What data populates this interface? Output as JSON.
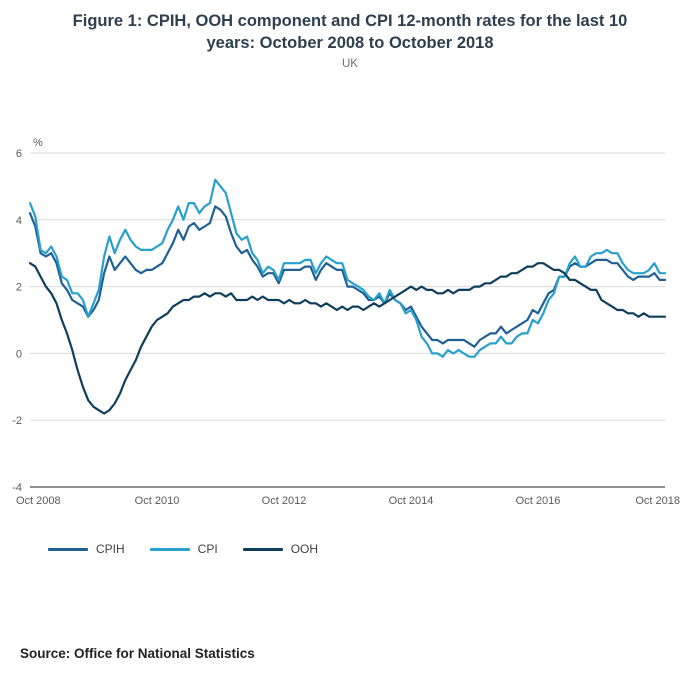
{
  "chart_data": {
    "type": "line",
    "title": "Figure 1: CPIH, OOH component and CPI 12-month rates for the last 10 years: October 2008 to October 2018",
    "subtitle": "UK",
    "unit_label": "%",
    "ylim": [
      -4,
      6
    ],
    "yticks": [
      -4,
      -2,
      0,
      2,
      4,
      6
    ],
    "grid": "horizontal",
    "legend_position": "bottom-left",
    "x_start": "Oct 2008",
    "x_end": "Oct 2018",
    "x_frequency": "monthly",
    "xticks": [
      {
        "index": 0,
        "label": "Oct 2008"
      },
      {
        "index": 24,
        "label": "Oct 2010"
      },
      {
        "index": 48,
        "label": "Oct 2012"
      },
      {
        "index": 72,
        "label": "Oct 2014"
      },
      {
        "index": 96,
        "label": "Oct 2016"
      },
      {
        "index": 120,
        "label": "Oct 2018"
      }
    ],
    "series": [
      {
        "name": "CPIH",
        "color": "#206095",
        "values": [
          4.2,
          3.8,
          3.0,
          2.9,
          3.0,
          2.7,
          2.1,
          1.9,
          1.6,
          1.5,
          1.4,
          1.1,
          1.3,
          1.6,
          2.4,
          2.9,
          2.5,
          2.7,
          2.9,
          2.7,
          2.5,
          2.4,
          2.5,
          2.5,
          2.6,
          2.7,
          3.0,
          3.3,
          3.7,
          3.4,
          3.8,
          3.9,
          3.7,
          3.8,
          3.9,
          4.4,
          4.3,
          4.1,
          3.6,
          3.2,
          3.0,
          3.1,
          2.8,
          2.6,
          2.3,
          2.4,
          2.4,
          2.1,
          2.5,
          2.5,
          2.5,
          2.5,
          2.6,
          2.6,
          2.2,
          2.5,
          2.7,
          2.6,
          2.5,
          2.5,
          2.0,
          2.0,
          1.9,
          1.8,
          1.6,
          1.6,
          1.7,
          1.5,
          1.8,
          1.6,
          1.5,
          1.3,
          1.4,
          1.1,
          0.8,
          0.6,
          0.4,
          0.4,
          0.3,
          0.4,
          0.4,
          0.4,
          0.4,
          0.3,
          0.2,
          0.4,
          0.5,
          0.6,
          0.6,
          0.8,
          0.6,
          0.7,
          0.8,
          0.9,
          1.0,
          1.3,
          1.2,
          1.5,
          1.8,
          1.9,
          2.3,
          2.3,
          2.6,
          2.7,
          2.6,
          2.6,
          2.7,
          2.8,
          2.8,
          2.8,
          2.7,
          2.7,
          2.5,
          2.3,
          2.2,
          2.3,
          2.3,
          2.3,
          2.4,
          2.2,
          2.2
        ]
      },
      {
        "name": "CPI",
        "color": "#27A0CC",
        "values": [
          4.5,
          4.1,
          3.1,
          3.0,
          3.2,
          2.9,
          2.3,
          2.2,
          1.8,
          1.8,
          1.6,
          1.1,
          1.5,
          1.9,
          2.9,
          3.5,
          3.0,
          3.4,
          3.7,
          3.4,
          3.2,
          3.1,
          3.1,
          3.1,
          3.2,
          3.3,
          3.7,
          4.0,
          4.4,
          4.0,
          4.5,
          4.5,
          4.2,
          4.4,
          4.5,
          5.2,
          5.0,
          4.8,
          4.2,
          3.6,
          3.4,
          3.5,
          3.0,
          2.8,
          2.4,
          2.6,
          2.5,
          2.2,
          2.7,
          2.7,
          2.7,
          2.7,
          2.8,
          2.8,
          2.4,
          2.7,
          2.9,
          2.8,
          2.7,
          2.7,
          2.2,
          2.1,
          2.0,
          1.9,
          1.7,
          1.6,
          1.8,
          1.5,
          1.9,
          1.6,
          1.5,
          1.2,
          1.3,
          1.0,
          0.5,
          0.3,
          0.0,
          0.0,
          -0.1,
          0.1,
          0.0,
          0.1,
          0.0,
          -0.1,
          -0.1,
          0.1,
          0.2,
          0.3,
          0.3,
          0.5,
          0.3,
          0.3,
          0.5,
          0.6,
          0.6,
          1.0,
          0.9,
          1.2,
          1.6,
          1.8,
          2.3,
          2.3,
          2.7,
          2.9,
          2.6,
          2.6,
          2.9,
          3.0,
          3.0,
          3.1,
          3.0,
          3.0,
          2.7,
          2.5,
          2.4,
          2.4,
          2.4,
          2.5,
          2.7,
          2.4,
          2.4
        ]
      },
      {
        "name": "OOH",
        "color": "#0F3D5C",
        "values": [
          2.7,
          2.6,
          2.3,
          2.0,
          1.8,
          1.5,
          1.0,
          0.6,
          0.1,
          -0.5,
          -1.0,
          -1.4,
          -1.6,
          -1.7,
          -1.8,
          -1.7,
          -1.5,
          -1.2,
          -0.8,
          -0.5,
          -0.2,
          0.2,
          0.5,
          0.8,
          1.0,
          1.1,
          1.2,
          1.4,
          1.5,
          1.6,
          1.6,
          1.7,
          1.7,
          1.8,
          1.7,
          1.8,
          1.8,
          1.7,
          1.8,
          1.6,
          1.6,
          1.6,
          1.7,
          1.6,
          1.7,
          1.6,
          1.6,
          1.6,
          1.5,
          1.6,
          1.5,
          1.5,
          1.6,
          1.5,
          1.5,
          1.4,
          1.5,
          1.4,
          1.3,
          1.4,
          1.3,
          1.4,
          1.4,
          1.3,
          1.4,
          1.5,
          1.4,
          1.5,
          1.6,
          1.7,
          1.8,
          1.9,
          2.0,
          1.9,
          2.0,
          1.9,
          1.9,
          1.8,
          1.8,
          1.9,
          1.8,
          1.9,
          1.9,
          1.9,
          2.0,
          2.0,
          2.1,
          2.1,
          2.2,
          2.3,
          2.3,
          2.4,
          2.4,
          2.5,
          2.6,
          2.6,
          2.7,
          2.7,
          2.6,
          2.5,
          2.5,
          2.4,
          2.2,
          2.2,
          2.1,
          2.0,
          1.9,
          1.9,
          1.6,
          1.5,
          1.4,
          1.3,
          1.3,
          1.2,
          1.2,
          1.1,
          1.2,
          1.1,
          1.1,
          1.1,
          1.1
        ]
      }
    ]
  },
  "source": "Source: Office for National Statistics",
  "colors": {
    "gridline": "#d9d9d9",
    "axis_line": "#222222",
    "tick_text": "#595959",
    "title_text": "#2e3f50",
    "subtitle_text": "#707071",
    "legend_text": "#414042",
    "source_text": "#222222"
  }
}
